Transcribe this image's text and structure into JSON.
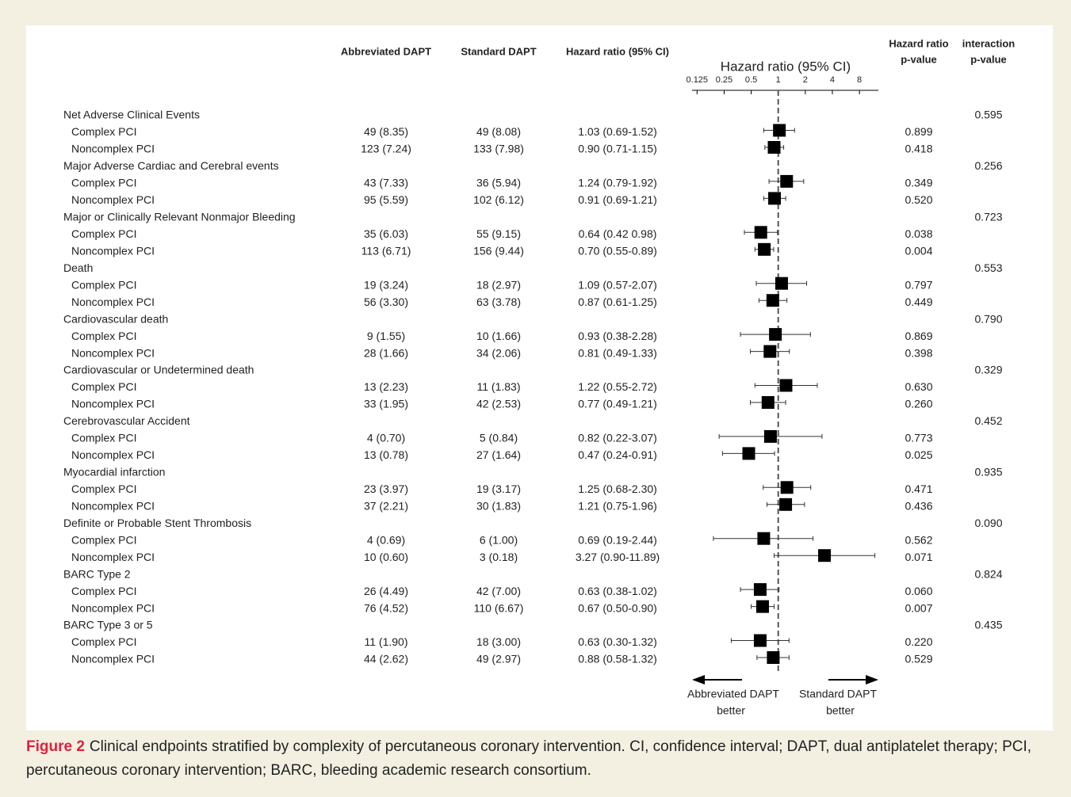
{
  "chart_data": {
    "type": "forest",
    "columns": [
      "Abbreviated DAPT",
      "Standard DAPT",
      "Hazard ratio (95% CI)"
    ],
    "p_header": [
      "Hazard ratio",
      "p-value"
    ],
    "interaction_header": [
      "interaction",
      "p-value"
    ],
    "axis_title": "Hazard ratio (95% CI)",
    "xscale": "log",
    "xlim": [
      0.11,
      13
    ],
    "xticks": [
      0.125,
      0.25,
      0.5,
      1,
      2,
      4,
      8
    ],
    "reference": 1,
    "color": "#000000",
    "left_arrow": [
      "Abbreviated DAPT",
      "better"
    ],
    "right_arrow": [
      "Standard DAPT",
      "better"
    ],
    "groups": [
      {
        "name": "Net Adverse Clinical Events",
        "interaction_p": "0.595",
        "rows": [
          {
            "label": "Complex PCI",
            "abbreviated": "49 (8.35)",
            "standard": "49 (8.08)",
            "hr_label": "1.03 (0.69-1.52)",
            "hr": 1.03,
            "lo": 0.69,
            "hi": 1.52,
            "p": "0.899"
          },
          {
            "label": "Noncomplex PCI",
            "abbreviated": "123 (7.24)",
            "standard": "133 (7.98)",
            "hr_label": "0.90 (0.71-1.15)",
            "hr": 0.9,
            "lo": 0.71,
            "hi": 1.15,
            "p": "0.418"
          }
        ]
      },
      {
        "name": "Major Adverse Cardiac and Cerebral events",
        "interaction_p": "0.256",
        "rows": [
          {
            "label": "Complex PCI",
            "abbreviated": "43 (7.33)",
            "standard": "36 (5.94)",
            "hr_label": "1.24 (0.79-1.92)",
            "hr": 1.24,
            "lo": 0.79,
            "hi": 1.92,
            "p": "0.349"
          },
          {
            "label": "Noncomplex PCI",
            "abbreviated": "95 (5.59)",
            "standard": "102 (6.12)",
            "hr_label": "0.91 (0.69-1.21)",
            "hr": 0.91,
            "lo": 0.69,
            "hi": 1.21,
            "p": "0.520"
          }
        ]
      },
      {
        "name": "Major or Clinically Relevant Nonmajor Bleeding",
        "interaction_p": "0.723",
        "rows": [
          {
            "label": "Complex PCI",
            "abbreviated": "35 (6.03)",
            "standard": "55 (9.15)",
            "hr_label": "0.64 (0.42 0.98)",
            "hr": 0.64,
            "lo": 0.42,
            "hi": 0.98,
            "p": "0.038"
          },
          {
            "label": "Noncomplex PCI",
            "abbreviated": "113 (6.71)",
            "standard": "156 (9.44)",
            "hr_label": "0.70 (0.55-0.89)",
            "hr": 0.7,
            "lo": 0.55,
            "hi": 0.89,
            "p": "0.004"
          }
        ]
      },
      {
        "name": "Death",
        "interaction_p": "0.553",
        "rows": [
          {
            "label": "Complex PCI",
            "abbreviated": "19 (3.24)",
            "standard": "18 (2.97)",
            "hr_label": "1.09 (0.57-2.07)",
            "hr": 1.09,
            "lo": 0.57,
            "hi": 2.07,
            "p": "0.797"
          },
          {
            "label": "Noncomplex PCI",
            "abbreviated": "56 (3.30)",
            "standard": "63 (3.78)",
            "hr_label": "0.87 (0.61-1.25)",
            "hr": 0.87,
            "lo": 0.61,
            "hi": 1.25,
            "p": "0.449"
          }
        ]
      },
      {
        "name": "Cardiovascular death",
        "interaction_p": "0.790",
        "rows": [
          {
            "label": "Complex PCI",
            "abbreviated": "9 (1.55)",
            "standard": "10 (1.66)",
            "hr_label": "0.93 (0.38-2.28)",
            "hr": 0.93,
            "lo": 0.38,
            "hi": 2.28,
            "p": "0.869"
          },
          {
            "label": "Noncomplex PCI",
            "abbreviated": "28 (1.66)",
            "standard": "34 (2.06)",
            "hr_label": "0.81 (0.49-1.33)",
            "hr": 0.81,
            "lo": 0.49,
            "hi": 1.33,
            "p": "0.398"
          }
        ]
      },
      {
        "name": "Cardiovascular or Undetermined death",
        "interaction_p": "0.329",
        "rows": [
          {
            "label": "Complex PCI",
            "abbreviated": "13 (2.23)",
            "standard": "11 (1.83)",
            "hr_label": "1.22 (0.55-2.72)",
            "hr": 1.22,
            "lo": 0.55,
            "hi": 2.72,
            "p": "0.630"
          },
          {
            "label": "Noncomplex PCI",
            "abbreviated": "33 (1.95)",
            "standard": "42 (2.53)",
            "hr_label": "0.77 (0.49-1.21)",
            "hr": 0.77,
            "lo": 0.49,
            "hi": 1.21,
            "p": "0.260"
          }
        ]
      },
      {
        "name": "Cerebrovascular Accident",
        "interaction_p": "0.452",
        "rows": [
          {
            "label": "Complex PCI",
            "abbreviated": "4 (0.70)",
            "standard": "5 (0.84)",
            "hr_label": "0.82 (0.22-3.07)",
            "hr": 0.82,
            "lo": 0.22,
            "hi": 3.07,
            "p": "0.773"
          },
          {
            "label": "Noncomplex PCI",
            "abbreviated": "13 (0.78)",
            "standard": "27 (1.64)",
            "hr_label": "0.47 (0.24-0.91)",
            "hr": 0.47,
            "lo": 0.24,
            "hi": 0.91,
            "p": "0.025"
          }
        ]
      },
      {
        "name": "Myocardial infarction",
        "interaction_p": "0.935",
        "rows": [
          {
            "label": "Complex PCI",
            "abbreviated": "23 (3.97)",
            "standard": "19 (3.17)",
            "hr_label": "1.25 (0.68-2.30)",
            "hr": 1.25,
            "lo": 0.68,
            "hi": 2.3,
            "p": "0.471"
          },
          {
            "label": "Noncomplex PCI",
            "abbreviated": "37 (2.21)",
            "standard": "30 (1.83)",
            "hr_label": "1.21 (0.75-1.96)",
            "hr": 1.21,
            "lo": 0.75,
            "hi": 1.96,
            "p": "0.436"
          }
        ]
      },
      {
        "name": "Definite or Probable Stent Thrombosis",
        "interaction_p": "0.090",
        "rows": [
          {
            "label": "Complex PCI",
            "abbreviated": "4 (0.69)",
            "standard": "6 (1.00)",
            "hr_label": "0.69 (0.19-2.44)",
            "hr": 0.69,
            "lo": 0.19,
            "hi": 2.44,
            "p": "0.562"
          },
          {
            "label": "Noncomplex PCI",
            "abbreviated": "10 (0.60)",
            "standard": "3 (0.18)",
            "hr_label": "3.27 (0.90-11.89)",
            "hr": 3.27,
            "lo": 0.9,
            "hi": 11.89,
            "p": "0.071"
          }
        ]
      },
      {
        "name": "BARC Type 2",
        "interaction_p": "0.824",
        "rows": [
          {
            "label": "Complex PCI",
            "abbreviated": "26 (4.49)",
            "standard": "42 (7.00)",
            "hr_label": "0.63 (0.38-1.02)",
            "hr": 0.63,
            "lo": 0.38,
            "hi": 1.02,
            "p": "0.060"
          },
          {
            "label": "Noncomplex PCI",
            "abbreviated": "76 (4.52)",
            "standard": "110 (6.67)",
            "hr_label": "0.67 (0.50-0.90)",
            "hr": 0.67,
            "lo": 0.5,
            "hi": 0.9,
            "p": "0.007"
          }
        ]
      },
      {
        "name": "BARC Type 3 or 5",
        "interaction_p": "0.435",
        "rows": [
          {
            "label": "Complex PCI",
            "abbreviated": "11 (1.90)",
            "standard": "18 (3.00)",
            "hr_label": "0.63 (0.30-1.32)",
            "hr": 0.63,
            "lo": 0.3,
            "hi": 1.32,
            "p": "0.220"
          },
          {
            "label": "Noncomplex PCI",
            "abbreviated": "44 (2.62)",
            "standard": "49 (2.97)",
            "hr_label": "0.88 (0.58-1.32)",
            "hr": 0.88,
            "lo": 0.58,
            "hi": 1.32,
            "p": "0.529"
          }
        ]
      }
    ]
  },
  "caption": {
    "label": "Figure 2",
    "text": "Clinical endpoints stratified by complexity of percutaneous coronary intervention. CI, confidence interval; DAPT, dual antiplatelet therapy; PCI, percutaneous coronary intervention; BARC, bleeding academic research consortium."
  }
}
